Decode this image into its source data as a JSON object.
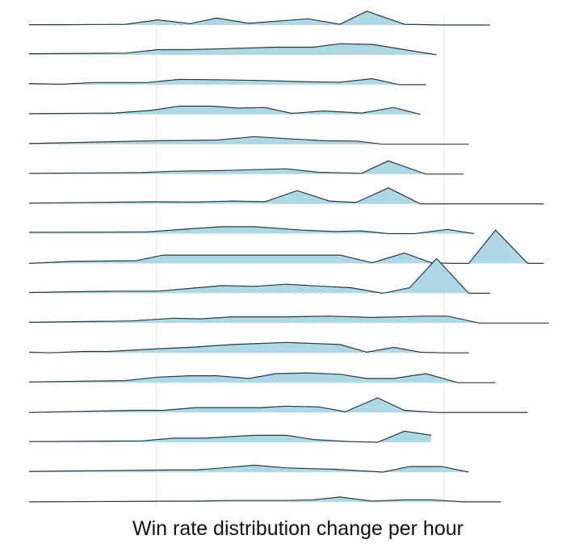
{
  "chart_data": {
    "type": "ridgeline",
    "xlabel": "Win rate distribution change per hour",
    "title": "",
    "ylabel": "",
    "grid": true,
    "legend": "none",
    "colors": {
      "fill": "#add8e6",
      "line": "#2b3a42",
      "grid": "#e6e6e6"
    },
    "xlim": [
      0,
      1
    ],
    "gridlines_x": [
      0.237,
      0.774
    ],
    "series": [
      {
        "x": [
          0,
          0.07,
          0.18,
          0.24,
          0.3,
          0.35,
          0.41,
          0.52,
          0.58,
          0.63,
          0.7,
          0.77,
          0.86
        ],
        "y": [
          0.01,
          0.01,
          0.02,
          0.15,
          0.04,
          0.2,
          0.05,
          0.18,
          0.02,
          0.4,
          0.02,
          0.0,
          0.0
        ]
      },
      {
        "x": [
          0,
          0.18,
          0.24,
          0.3,
          0.37,
          0.46,
          0.53,
          0.58,
          0.64,
          0.76
        ],
        "y": [
          0.03,
          0.05,
          0.15,
          0.15,
          0.18,
          0.22,
          0.22,
          0.32,
          0.3,
          0.0
        ]
      },
      {
        "x": [
          0,
          0.06,
          0.12,
          0.22,
          0.28,
          0.35,
          0.43,
          0.52,
          0.58,
          0.64,
          0.69,
          0.74
        ],
        "y": [
          0.03,
          0.01,
          0.06,
          0.06,
          0.15,
          0.14,
          0.12,
          0.08,
          0.07,
          0.17,
          0.0,
          0.0
        ]
      },
      {
        "x": [
          0,
          0.16,
          0.23,
          0.28,
          0.34,
          0.39,
          0.44,
          0.49,
          0.55,
          0.62,
          0.68,
          0.73
        ],
        "y": [
          0.02,
          0.04,
          0.12,
          0.24,
          0.24,
          0.18,
          0.2,
          0.03,
          0.1,
          0.04,
          0.2,
          0.0
        ]
      },
      {
        "x": [
          0,
          0.24,
          0.35,
          0.42,
          0.48,
          0.55,
          0.61,
          0.66,
          0.82
        ],
        "y": [
          0.02,
          0.1,
          0.12,
          0.22,
          0.16,
          0.1,
          0.09,
          0.0,
          0.0
        ]
      },
      {
        "x": [
          0,
          0.21,
          0.27,
          0.36,
          0.48,
          0.54,
          0.62,
          0.67,
          0.74,
          0.81
        ],
        "y": [
          0.02,
          0.04,
          0.08,
          0.1,
          0.15,
          0.05,
          0.02,
          0.38,
          0.0,
          0.0
        ]
      },
      {
        "x": [
          0,
          0.23,
          0.31,
          0.38,
          0.44,
          0.5,
          0.56,
          0.61,
          0.67,
          0.73,
          0.96
        ],
        "y": [
          0.02,
          0.06,
          0.05,
          0.08,
          0.06,
          0.38,
          0.08,
          0.04,
          0.46,
          0.0,
          0.0
        ]
      },
      {
        "x": [
          0,
          0.22,
          0.3,
          0.36,
          0.42,
          0.51,
          0.57,
          0.62,
          0.67,
          0.72,
          0.78,
          0.83
        ],
        "y": [
          0.04,
          0.05,
          0.14,
          0.2,
          0.2,
          0.1,
          0.06,
          0.08,
          0.0,
          0.0,
          0.12,
          0.0
        ]
      },
      {
        "x": [
          0,
          0.08,
          0.2,
          0.25,
          0.35,
          0.47,
          0.58,
          0.64,
          0.7,
          0.75,
          0.79,
          0.82,
          0.87,
          0.93,
          0.96
        ],
        "y": [
          0.0,
          0.06,
          0.08,
          0.24,
          0.24,
          0.24,
          0.24,
          0.02,
          0.3,
          0.02,
          0.0,
          0.0,
          0.96,
          0.0,
          0.0
        ]
      },
      {
        "x": [
          0,
          0.07,
          0.16,
          0.24,
          0.3,
          0.36,
          0.42,
          0.48,
          0.55,
          0.6,
          0.66,
          0.71,
          0.76,
          0.82,
          0.86
        ],
        "y": [
          0.02,
          0.04,
          0.06,
          0.06,
          0.14,
          0.22,
          0.2,
          0.26,
          0.2,
          0.16,
          0.0,
          0.16,
          1.0,
          0.0,
          0.0
        ]
      },
      {
        "x": [
          0,
          0.19,
          0.27,
          0.32,
          0.38,
          0.48,
          0.56,
          0.64,
          0.74,
          0.78,
          0.84,
          0.97
        ],
        "y": [
          0.02,
          0.06,
          0.14,
          0.12,
          0.18,
          0.18,
          0.2,
          0.16,
          0.2,
          0.2,
          0.0,
          0.0
        ]
      },
      {
        "x": [
          0,
          0.04,
          0.1,
          0.15,
          0.22,
          0.3,
          0.38,
          0.48,
          0.58,
          0.63,
          0.68,
          0.73,
          0.77,
          0.82
        ],
        "y": [
          0.02,
          0.0,
          0.04,
          0.04,
          0.1,
          0.16,
          0.24,
          0.3,
          0.24,
          0.02,
          0.16,
          0.02,
          0.0,
          0.0
        ]
      },
      {
        "x": [
          0,
          0.18,
          0.24,
          0.3,
          0.35,
          0.41,
          0.46,
          0.52,
          0.58,
          0.63,
          0.68,
          0.74,
          0.8,
          0.87
        ],
        "y": [
          0.02,
          0.06,
          0.16,
          0.2,
          0.2,
          0.12,
          0.26,
          0.28,
          0.24,
          0.12,
          0.12,
          0.26,
          0.0,
          0.0
        ]
      },
      {
        "x": [
          0,
          0.19,
          0.25,
          0.31,
          0.37,
          0.43,
          0.48,
          0.54,
          0.59,
          0.65,
          0.7,
          0.76,
          0.93
        ],
        "y": [
          0.0,
          0.06,
          0.06,
          0.14,
          0.14,
          0.14,
          0.18,
          0.16,
          0.02,
          0.42,
          0.06,
          0.0,
          0.0
        ]
      },
      {
        "x": [
          0,
          0.21,
          0.27,
          0.33,
          0.42,
          0.48,
          0.53,
          0.6,
          0.65,
          0.7,
          0.75
        ],
        "y": [
          0.02,
          0.04,
          0.12,
          0.12,
          0.2,
          0.2,
          0.08,
          0.02,
          0.0,
          0.32,
          0.2
        ]
      },
      {
        "x": [
          0,
          0.26,
          0.31,
          0.36,
          0.42,
          0.48,
          0.57,
          0.66,
          0.71,
          0.77,
          0.82
        ],
        "y": [
          0.02,
          0.06,
          0.06,
          0.12,
          0.2,
          0.12,
          0.08,
          0.0,
          0.16,
          0.16,
          0.0
        ]
      },
      {
        "x": [
          0,
          0.26,
          0.31,
          0.37,
          0.43,
          0.48,
          0.53,
          0.58,
          0.64,
          0.7,
          0.75,
          0.81,
          0.88
        ],
        "y": [
          0.0,
          0.02,
          0.02,
          0.04,
          0.04,
          0.04,
          0.06,
          0.14,
          0.02,
          0.06,
          0.06,
          0.0,
          0.0
        ]
      }
    ]
  }
}
